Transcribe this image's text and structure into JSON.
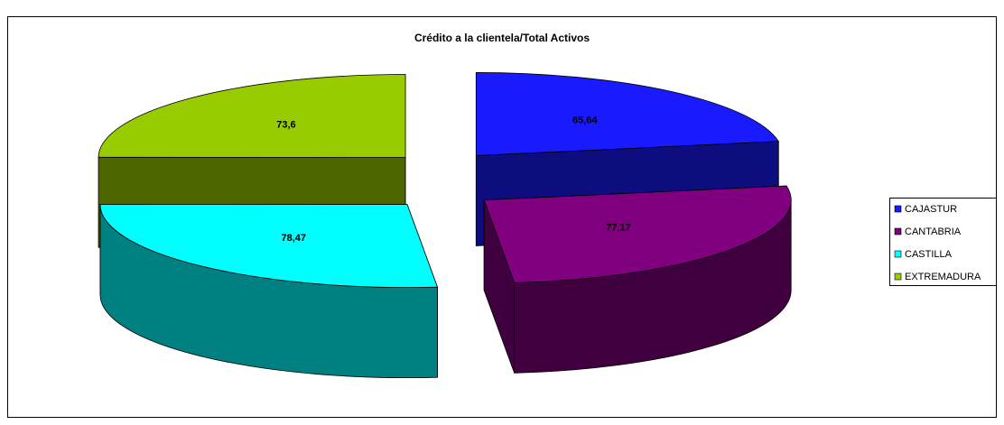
{
  "chart_data": {
    "type": "pie",
    "title": "Crédito a la clientela/Total Activos",
    "categories": [
      "CAJASTUR",
      "CANTABRIA",
      "CASTILLA",
      "EXTREMADURA"
    ],
    "values": [
      65.64,
      77.17,
      78.47,
      73.6
    ],
    "value_labels": [
      "65,64",
      "77,17",
      "78,47",
      "73,6"
    ],
    "colors": [
      "#1a1aff",
      "#800080",
      "#00ffff",
      "#99cc00"
    ],
    "legend": "right"
  }
}
